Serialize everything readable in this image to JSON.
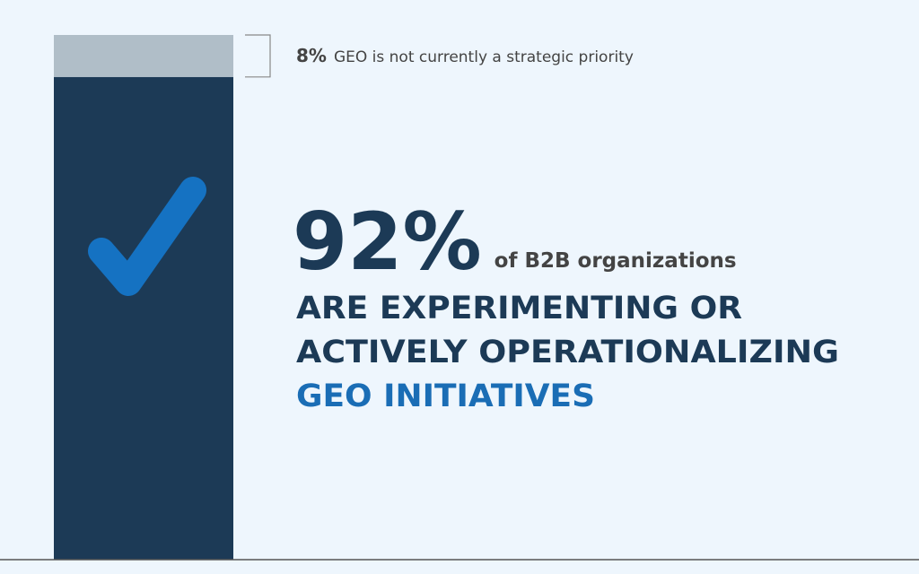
{
  "chart_data": {
    "type": "stacked_bar",
    "values": [
      92,
      8
    ],
    "value_labels": [
      "92%",
      "8%"
    ],
    "colors": [
      "#1c3a56",
      "#b0bec8"
    ],
    "ylim": [
      0,
      100
    ],
    "annotations": [
      {
        "text": "of B2B organizations",
        "lines": [
          "ARE EXPERIMENTING OR",
          "ACTIVELY OPERATIONALIZING"
        ],
        "highlight": "GEO INITIATIVES"
      },
      {
        "text": "GEO is not currently a strategic priority"
      }
    ]
  }
}
